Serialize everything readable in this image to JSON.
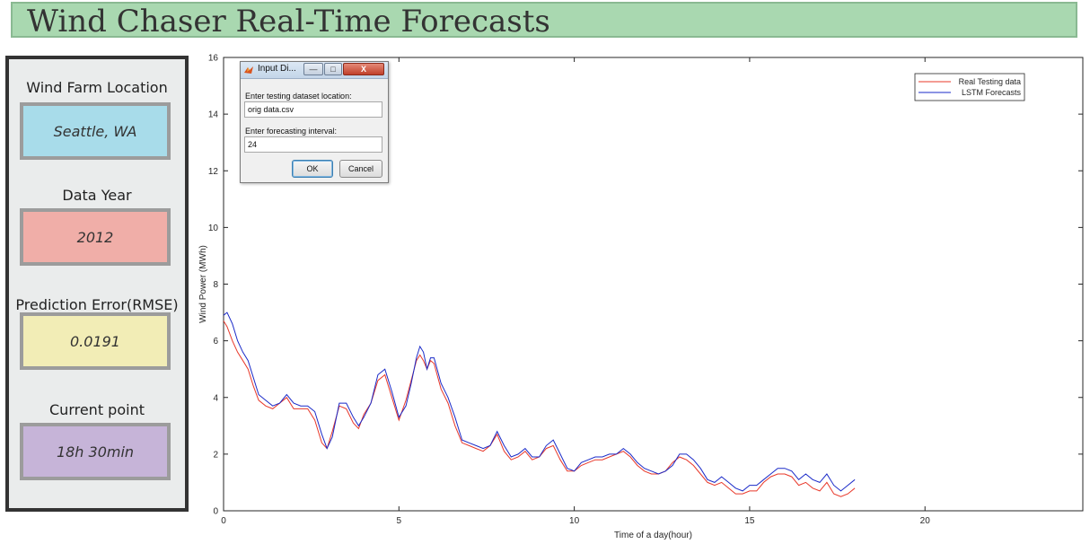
{
  "header": {
    "title": "Wind Chaser Real-Time Forecasts"
  },
  "sidebar": {
    "stats": [
      {
        "label": "Wind Farm Location",
        "value": "Seattle, WA",
        "color": "#a8dcea"
      },
      {
        "label": "Data Year",
        "value": "2012",
        "color": "#f0aea8"
      },
      {
        "label": "Prediction Error(RMSE)",
        "value": "0.0191",
        "color": "#f2edb6"
      },
      {
        "label": "Current point",
        "value": "18h 30min",
        "color": "#c6b4d8"
      }
    ]
  },
  "dialog": {
    "title": "Input Di...",
    "location_label": "Enter testing dataset location:",
    "location_value": "orig data.csv",
    "interval_label": "Enter forecasting interval:",
    "interval_value": "24",
    "ok_label": "OK",
    "cancel_label": "Cancel",
    "icon": "matlab-icon"
  },
  "chart_data": {
    "type": "line",
    "xlabel": "Time of a day(hour)",
    "ylabel": "Wind Power (MWh)",
    "xlim": [
      0,
      24.5
    ],
    "ylim": [
      0,
      16
    ],
    "xticks": [
      0,
      5,
      10,
      15,
      20
    ],
    "yticks": [
      0,
      2,
      4,
      6,
      8,
      10,
      12,
      14,
      16
    ],
    "grid": false,
    "legend_position": "top-right",
    "series": [
      {
        "name": "Real Testing data",
        "color": "#e8382a",
        "x": [
          0,
          0.1,
          0.25,
          0.4,
          0.55,
          0.7,
          0.85,
          1.0,
          1.2,
          1.4,
          1.6,
          1.8,
          2.0,
          2.2,
          2.4,
          2.6,
          2.8,
          2.95,
          3.1,
          3.3,
          3.5,
          3.7,
          3.85,
          4.0,
          4.2,
          4.4,
          4.6,
          4.8,
          5.0,
          5.2,
          5.35,
          5.5,
          5.6,
          5.7,
          5.8,
          5.9,
          6.0,
          6.2,
          6.4,
          6.6,
          6.8,
          7.0,
          7.2,
          7.4,
          7.6,
          7.8,
          8.0,
          8.2,
          8.4,
          8.6,
          8.8,
          9.0,
          9.2,
          9.4,
          9.6,
          9.8,
          10.0,
          10.2,
          10.4,
          10.6,
          10.8,
          11.0,
          11.2,
          11.4,
          11.6,
          11.8,
          12.0,
          12.2,
          12.4,
          12.6,
          12.8,
          13.0,
          13.2,
          13.4,
          13.6,
          13.8,
          14.0,
          14.2,
          14.4,
          14.6,
          14.8,
          15.0,
          15.2,
          15.4,
          15.6,
          15.8,
          16.0,
          16.2,
          16.4,
          16.6,
          16.8,
          17.0,
          17.2,
          17.4,
          17.6,
          17.8,
          18.0
        ],
        "values": [
          6.7,
          6.5,
          6.0,
          5.6,
          5.3,
          5.0,
          4.4,
          3.9,
          3.7,
          3.6,
          3.8,
          4.0,
          3.6,
          3.6,
          3.6,
          3.2,
          2.4,
          2.2,
          2.8,
          3.7,
          3.6,
          3.1,
          2.9,
          3.4,
          3.8,
          4.6,
          4.8,
          4.0,
          3.2,
          3.9,
          4.6,
          5.3,
          5.5,
          5.3,
          5.0,
          5.3,
          5.2,
          4.3,
          3.8,
          3.0,
          2.4,
          2.3,
          2.2,
          2.1,
          2.3,
          2.7,
          2.1,
          1.8,
          1.9,
          2.1,
          1.8,
          1.9,
          2.2,
          2.3,
          1.8,
          1.4,
          1.4,
          1.6,
          1.7,
          1.8,
          1.8,
          1.9,
          2.0,
          2.1,
          1.9,
          1.6,
          1.4,
          1.3,
          1.3,
          1.4,
          1.7,
          1.9,
          1.8,
          1.6,
          1.3,
          1.0,
          0.9,
          1.0,
          0.8,
          0.6,
          0.6,
          0.7,
          0.7,
          1.0,
          1.2,
          1.3,
          1.3,
          1.2,
          0.9,
          1.0,
          0.8,
          0.7,
          1.0,
          0.6,
          0.5,
          0.6,
          0.8
        ]
      },
      {
        "name": "LSTM Forecasts",
        "color": "#1a2ac8",
        "x": [
          0,
          0.1,
          0.25,
          0.4,
          0.55,
          0.7,
          0.85,
          1.0,
          1.2,
          1.4,
          1.6,
          1.8,
          2.0,
          2.2,
          2.4,
          2.6,
          2.8,
          2.95,
          3.1,
          3.3,
          3.5,
          3.7,
          3.85,
          4.0,
          4.2,
          4.4,
          4.6,
          4.8,
          5.0,
          5.2,
          5.35,
          5.5,
          5.6,
          5.7,
          5.8,
          5.9,
          6.0,
          6.2,
          6.4,
          6.6,
          6.8,
          7.0,
          7.2,
          7.4,
          7.6,
          7.8,
          8.0,
          8.2,
          8.4,
          8.6,
          8.8,
          9.0,
          9.2,
          9.4,
          9.6,
          9.8,
          10.0,
          10.2,
          10.4,
          10.6,
          10.8,
          11.0,
          11.2,
          11.4,
          11.6,
          11.8,
          12.0,
          12.2,
          12.4,
          12.6,
          12.8,
          13.0,
          13.2,
          13.4,
          13.6,
          13.8,
          14.0,
          14.2,
          14.4,
          14.6,
          14.8,
          15.0,
          15.2,
          15.4,
          15.6,
          15.8,
          16.0,
          16.2,
          16.4,
          16.6,
          16.8,
          17.0,
          17.2,
          17.4,
          17.6,
          17.8,
          18.0
        ],
        "values": [
          6.9,
          7.0,
          6.6,
          6.0,
          5.6,
          5.3,
          4.7,
          4.1,
          3.9,
          3.7,
          3.8,
          4.1,
          3.8,
          3.7,
          3.7,
          3.5,
          2.7,
          2.2,
          2.6,
          3.8,
          3.8,
          3.3,
          3.0,
          3.3,
          3.8,
          4.8,
          5.0,
          4.2,
          3.3,
          3.7,
          4.5,
          5.4,
          5.8,
          5.6,
          5.0,
          5.4,
          5.4,
          4.5,
          4.0,
          3.3,
          2.5,
          2.4,
          2.3,
          2.2,
          2.3,
          2.8,
          2.3,
          1.9,
          2.0,
          2.2,
          1.9,
          1.9,
          2.3,
          2.5,
          2.0,
          1.5,
          1.4,
          1.7,
          1.8,
          1.9,
          1.9,
          2.0,
          2.0,
          2.2,
          2.0,
          1.7,
          1.5,
          1.4,
          1.3,
          1.4,
          1.6,
          2.0,
          2.0,
          1.8,
          1.5,
          1.1,
          1.0,
          1.2,
          1.0,
          0.8,
          0.7,
          0.9,
          0.9,
          1.1,
          1.3,
          1.5,
          1.5,
          1.4,
          1.1,
          1.3,
          1.1,
          1.0,
          1.3,
          0.9,
          0.7,
          0.9,
          1.1
        ]
      }
    ]
  }
}
